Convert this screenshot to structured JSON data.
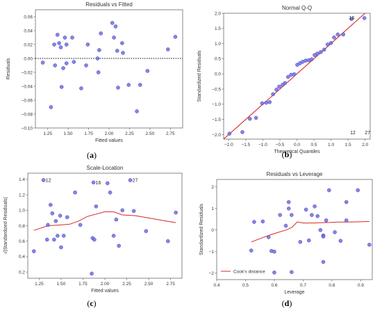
{
  "chart_data": [
    {
      "id": "a",
      "type": "scatter",
      "title": "Residuals vs Fitted",
      "xlabel": "Fitted values",
      "ylabel": "Residuals",
      "caption": "(a)",
      "xlim": [
        1.1,
        2.9
      ],
      "ylim": [
        -0.1,
        0.07
      ],
      "xticks": [
        1.25,
        1.5,
        1.75,
        2.0,
        2.25,
        2.5,
        2.75
      ],
      "xtick_labels": [
        "1.25",
        "1.50",
        "1.75",
        "2.00",
        "2.25",
        "2.50",
        "2.75"
      ],
      "yticks": [
        -0.1,
        -0.08,
        -0.06,
        -0.04,
        -0.02,
        0.0,
        0.02,
        0.04,
        0.06
      ],
      "ytick_labels": [
        "−0.10",
        "−0.08",
        "−0.06",
        "−0.04",
        "−0.02",
        "0.00",
        "0.02",
        "0.04",
        "0.06"
      ],
      "reference_line": {
        "type": "horizontal",
        "y": 0.0,
        "style": "dotted"
      },
      "grid": false,
      "points": [
        {
          "x": 1.19,
          "y": -0.006
        },
        {
          "x": 1.29,
          "y": -0.07
        },
        {
          "x": 1.33,
          "y": 0.02
        },
        {
          "x": 1.34,
          "y": -0.01
        },
        {
          "x": 1.37,
          "y": 0.034
        },
        {
          "x": 1.39,
          "y": 0.022
        },
        {
          "x": 1.41,
          "y": 0.016
        },
        {
          "x": 1.42,
          "y": -0.041
        },
        {
          "x": 1.44,
          "y": -0.014
        },
        {
          "x": 1.46,
          "y": 0.03
        },
        {
          "x": 1.48,
          "y": 0.02
        },
        {
          "x": 1.48,
          "y": -0.007
        },
        {
          "x": 1.55,
          "y": 0.03
        },
        {
          "x": 1.57,
          "y": -0.005
        },
        {
          "x": 1.66,
          "y": -0.043
        },
        {
          "x": 1.72,
          "y": -0.01
        },
        {
          "x": 1.74,
          "y": 0.02
        },
        {
          "x": 1.86,
          "y": 0.0
        },
        {
          "x": 1.87,
          "y": -0.02
        },
        {
          "x": 1.88,
          "y": 0.012
        },
        {
          "x": 1.9,
          "y": 0.036
        },
        {
          "x": 2.04,
          "y": 0.051
        },
        {
          "x": 2.06,
          "y": 0.03
        },
        {
          "x": 2.08,
          "y": 0.046
        },
        {
          "x": 2.1,
          "y": 0.011
        },
        {
          "x": 2.11,
          "y": -0.042
        },
        {
          "x": 2.16,
          "y": 0.022
        },
        {
          "x": 2.17,
          "y": 0.008
        },
        {
          "x": 2.24,
          "y": -0.038
        },
        {
          "x": 2.34,
          "y": -0.076
        },
        {
          "x": 2.38,
          "y": -0.038
        },
        {
          "x": 2.47,
          "y": -0.018
        },
        {
          "x": 2.72,
          "y": 0.013
        },
        {
          "x": 2.81,
          "y": 0.031
        }
      ]
    },
    {
      "id": "b",
      "type": "scatter",
      "title": "Normal Q-Q",
      "xlabel": "Theoretical Quantiles",
      "ylabel": "Standardized Residuals",
      "caption": "(b)",
      "xlim": [
        -2.15,
        2.15
      ],
      "ylim": [
        -2.15,
        2.0
      ],
      "xticks": [
        -2.0,
        -1.5,
        -1.0,
        -0.5,
        0.0,
        0.5,
        1.0,
        1.5,
        2.0
      ],
      "xtick_labels": [
        "−2.0",
        "−1.5",
        "−1.0",
        "−0.5",
        "0.0",
        "0.5",
        "1.0",
        "1.5",
        "2.0"
      ],
      "yticks": [
        -2.0,
        -1.5,
        -1.0,
        -0.5,
        0.0,
        0.5,
        1.0,
        1.5,
        2.0
      ],
      "ytick_labels": [
        "−2.0",
        "−1.5",
        "−1.0",
        "−0.5",
        "0.0",
        "0.5",
        "1.0",
        "1.5",
        "2.0"
      ],
      "reference_line": {
        "type": "line",
        "from": [
          -2.15,
          -2.15
        ],
        "to": [
          2.0,
          2.0
        ],
        "color": "#d62728"
      },
      "grid": false,
      "annotations": [
        {
          "text": "16",
          "x": 1.47,
          "y": 1.85
        },
        {
          "text": "12",
          "x": 1.5,
          "y": -1.93
        },
        {
          "text": "27",
          "x": 1.93,
          "y": -1.93
        }
      ],
      "points": [
        {
          "x": -1.98,
          "y": -1.97
        },
        {
          "x": -1.6,
          "y": -1.92
        },
        {
          "x": -1.38,
          "y": -1.48
        },
        {
          "x": -1.2,
          "y": -1.45
        },
        {
          "x": -1.02,
          "y": -0.97
        },
        {
          "x": -0.9,
          "y": -0.95
        },
        {
          "x": -0.8,
          "y": -0.93
        },
        {
          "x": -0.7,
          "y": -0.67
        },
        {
          "x": -0.6,
          "y": -0.52
        },
        {
          "x": -0.52,
          "y": -0.42
        },
        {
          "x": -0.42,
          "y": -0.36
        },
        {
          "x": -0.35,
          "y": -0.3
        },
        {
          "x": -0.26,
          "y": -0.1
        },
        {
          "x": -0.17,
          "y": -0.03
        },
        {
          "x": -0.08,
          "y": -0.01
        },
        {
          "x": 0.01,
          "y": 0.3
        },
        {
          "x": 0.09,
          "y": 0.35
        },
        {
          "x": 0.17,
          "y": 0.4
        },
        {
          "x": 0.26,
          "y": 0.44
        },
        {
          "x": 0.35,
          "y": 0.45
        },
        {
          "x": 0.43,
          "y": 0.48
        },
        {
          "x": 0.52,
          "y": 0.62
        },
        {
          "x": 0.6,
          "y": 0.67
        },
        {
          "x": 0.7,
          "y": 0.72
        },
        {
          "x": 0.8,
          "y": 0.8
        },
        {
          "x": 0.9,
          "y": 0.97
        },
        {
          "x": 1.0,
          "y": 1.02
        },
        {
          "x": 1.09,
          "y": 1.2
        },
        {
          "x": 1.2,
          "y": 1.3
        },
        {
          "x": 1.36,
          "y": 1.3
        },
        {
          "x": 1.6,
          "y": 1.81
        },
        {
          "x": 1.98,
          "y": 1.84
        }
      ]
    },
    {
      "id": "c",
      "type": "scatter",
      "title": "Scale-Location",
      "xlabel": "Fitted values",
      "ylabel": "√|Standardized Residuals|",
      "caption": "(c)",
      "xlim": [
        1.12,
        2.88
      ],
      "ylim": [
        0.12,
        1.48
      ],
      "xticks": [
        1.25,
        1.5,
        1.75,
        2.0,
        2.25,
        2.5,
        2.75
      ],
      "xtick_labels": [
        "1.25",
        "1.50",
        "1.75",
        "2.00",
        "2.25",
        "2.50",
        "2.75"
      ],
      "yticks": [
        0.2,
        0.4,
        0.6,
        0.8,
        1.0,
        1.2,
        1.4
      ],
      "ytick_labels": [
        "0.2",
        "0.4",
        "0.6",
        "0.8",
        "1.0",
        "1.2",
        "1.4"
      ],
      "grid": false,
      "smoother": {
        "color": "#d62728",
        "x": [
          1.19,
          1.35,
          1.5,
          1.6,
          1.7,
          1.8,
          1.9,
          2.0,
          2.1,
          2.2,
          2.35,
          2.5,
          2.65,
          2.81
        ],
        "y": [
          0.74,
          0.8,
          0.81,
          0.82,
          0.86,
          0.92,
          0.95,
          0.98,
          0.98,
          0.94,
          0.93,
          0.9,
          0.87,
          0.84
        ]
      },
      "annotations": [
        {
          "text": "12",
          "x": 1.3,
          "y": 1.39
        },
        {
          "text": "16",
          "x": 1.87,
          "y": 1.36
        },
        {
          "text": "27",
          "x": 2.29,
          "y": 1.39
        }
      ],
      "points": [
        {
          "x": 1.19,
          "y": 0.47
        },
        {
          "x": 1.3,
          "y": 1.39
        },
        {
          "x": 1.34,
          "y": 0.62
        },
        {
          "x": 1.35,
          "y": 0.81
        },
        {
          "x": 1.38,
          "y": 1.07
        },
        {
          "x": 1.4,
          "y": 0.96
        },
        {
          "x": 1.42,
          "y": 0.62
        },
        {
          "x": 1.44,
          "y": 0.86
        },
        {
          "x": 1.46,
          "y": 0.67
        },
        {
          "x": 1.49,
          "y": 0.93
        },
        {
          "x": 1.5,
          "y": 0.52
        },
        {
          "x": 1.53,
          "y": 0.67
        },
        {
          "x": 1.57,
          "y": 0.91
        },
        {
          "x": 1.66,
          "y": 1.23
        },
        {
          "x": 1.72,
          "y": 0.81
        },
        {
          "x": 1.85,
          "y": 0.18
        },
        {
          "x": 1.86,
          "y": 0.64
        },
        {
          "x": 1.87,
          "y": 1.36
        },
        {
          "x": 1.88,
          "y": 0.62
        },
        {
          "x": 1.9,
          "y": 1.05
        },
        {
          "x": 2.03,
          "y": 1.35
        },
        {
          "x": 2.06,
          "y": 1.23
        },
        {
          "x": 2.1,
          "y": 0.67
        },
        {
          "x": 2.13,
          "y": 0.88
        },
        {
          "x": 2.16,
          "y": 0.54
        },
        {
          "x": 2.2,
          "y": 1.0
        },
        {
          "x": 2.29,
          "y": 1.39
        },
        {
          "x": 2.33,
          "y": 0.99
        },
        {
          "x": 2.47,
          "y": 0.73
        },
        {
          "x": 2.72,
          "y": 0.6
        },
        {
          "x": 2.81,
          "y": 0.97
        }
      ]
    },
    {
      "id": "d",
      "type": "scatter",
      "title": "Residuals vs Leverage",
      "xlabel": "Leverage",
      "ylabel": "Standardized Residuals",
      "caption": "(d)",
      "xlim": [
        0.4,
        0.94
      ],
      "ylim": [
        -2.3,
        2.35
      ],
      "xticks": [
        0.4,
        0.5,
        0.6,
        0.7,
        0.8,
        0.9
      ],
      "xtick_labels": [
        "0.4",
        "0.5",
        "0.6",
        "0.7",
        "0.8",
        "0.9"
      ],
      "yticks": [
        -2,
        -1,
        0,
        1,
        2
      ],
      "ytick_labels": [
        "−2",
        "−1",
        "0",
        "1",
        "2"
      ],
      "grid": false,
      "legend": {
        "position": "lower-left",
        "label": "Cook's distance",
        "color": "#d62728"
      },
      "smoother": {
        "color": "#d62728",
        "x": [
          0.52,
          0.55,
          0.58,
          0.61,
          0.64,
          0.66,
          0.68,
          0.7,
          0.73,
          0.76,
          0.79,
          0.82,
          0.85,
          0.88,
          0.91,
          0.93
        ],
        "y": [
          -0.55,
          -0.4,
          -0.25,
          -0.12,
          0.0,
          0.12,
          0.38,
          0.33,
          0.33,
          0.34,
          0.35,
          0.37,
          0.37,
          0.38,
          0.39,
          0.4
        ]
      },
      "points": [
        {
          "x": 0.52,
          "y": -0.95
        },
        {
          "x": 0.53,
          "y": 0.38
        },
        {
          "x": 0.56,
          "y": 0.4
        },
        {
          "x": 0.58,
          "y": -0.33
        },
        {
          "x": 0.59,
          "y": -0.97
        },
        {
          "x": 0.6,
          "y": -1.97
        },
        {
          "x": 0.6,
          "y": -1.0
        },
        {
          "x": 0.62,
          "y": 0.7
        },
        {
          "x": 0.64,
          "y": 0.2
        },
        {
          "x": 0.65,
          "y": 1.0
        },
        {
          "x": 0.65,
          "y": 1.3
        },
        {
          "x": 0.66,
          "y": 0.7
        },
        {
          "x": 0.66,
          "y": -1.95
        },
        {
          "x": 0.69,
          "y": -0.55
        },
        {
          "x": 0.71,
          "y": 0.95
        },
        {
          "x": 0.72,
          "y": -0.48
        },
        {
          "x": 0.73,
          "y": 0.7
        },
        {
          "x": 0.74,
          "y": 1.1
        },
        {
          "x": 0.75,
          "y": 0.65
        },
        {
          "x": 0.76,
          "y": 0.0
        },
        {
          "x": 0.77,
          "y": -0.25
        },
        {
          "x": 0.77,
          "y": -0.3
        },
        {
          "x": 0.77,
          "y": -1.48
        },
        {
          "x": 0.78,
          "y": 0.45
        },
        {
          "x": 0.79,
          "y": 1.85
        },
        {
          "x": 0.81,
          "y": -0.1
        },
        {
          "x": 0.83,
          "y": -0.5
        },
        {
          "x": 0.85,
          "y": 1.3
        },
        {
          "x": 0.85,
          "y": 0.45
        },
        {
          "x": 0.89,
          "y": 1.85
        },
        {
          "x": 0.93,
          "y": -0.68
        }
      ]
    }
  ],
  "style": {
    "point_fill": "#6f6fe0",
    "point_stroke": "#3f3fb5",
    "line_color": "#d62728",
    "axis_color": "#555555"
  }
}
